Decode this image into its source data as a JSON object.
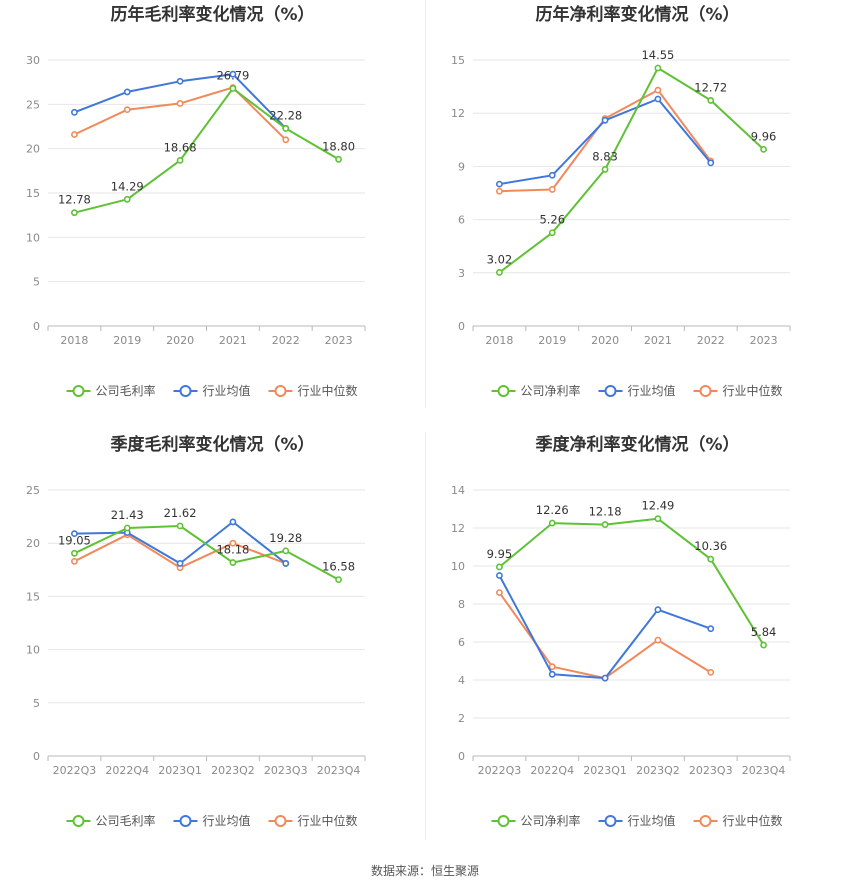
{
  "source": "数据来源：恒生聚源",
  "colors": {
    "company": "#5ec234",
    "industry_avg": "#3f77db",
    "industry_median": "#f08a5b"
  },
  "chart_data": [
    {
      "type": "line",
      "title": "历年毛利率变化情况（%）",
      "categories": [
        "2018",
        "2019",
        "2020",
        "2021",
        "2022",
        "2023"
      ],
      "ylim": [
        0,
        30
      ],
      "yticks": [
        0,
        5,
        10,
        15,
        20,
        25,
        30
      ],
      "grid": true,
      "legend": "bottom",
      "series": [
        {
          "name": "公司毛利率",
          "key": "company",
          "labels": true,
          "values": [
            12.78,
            14.29,
            18.68,
            26.79,
            22.28,
            18.8
          ],
          "display": [
            "12.78",
            "14.29",
            "18.68",
            "26.79",
            "22.28",
            "18.80"
          ]
        },
        {
          "name": "行业均值",
          "key": "industry_avg",
          "labels": false,
          "values": [
            24.1,
            26.4,
            27.6,
            28.4,
            22.3,
            null
          ]
        },
        {
          "name": "行业中位数",
          "key": "industry_median",
          "labels": false,
          "values": [
            21.6,
            24.4,
            25.1,
            26.9,
            21.0,
            null
          ]
        }
      ]
    },
    {
      "type": "line",
      "title": "历年净利率变化情况（%）",
      "categories": [
        "2018",
        "2019",
        "2020",
        "2021",
        "2022",
        "2023"
      ],
      "ylim": [
        0,
        15
      ],
      "yticks": [
        0,
        3,
        6,
        9,
        12,
        15
      ],
      "grid": true,
      "legend": "bottom",
      "series": [
        {
          "name": "公司净利率",
          "key": "company",
          "labels": true,
          "values": [
            3.02,
            5.26,
            8.83,
            14.55,
            12.72,
            9.96
          ],
          "display": [
            "3.02",
            "5.26",
            "8.83",
            "14.55",
            "12.72",
            "9.96"
          ]
        },
        {
          "name": "行业均值",
          "key": "industry_avg",
          "labels": false,
          "values": [
            8.0,
            8.5,
            11.6,
            12.8,
            9.2,
            null
          ]
        },
        {
          "name": "行业中位数",
          "key": "industry_median",
          "labels": false,
          "values": [
            7.6,
            7.7,
            11.7,
            13.3,
            9.3,
            null
          ]
        }
      ]
    },
    {
      "type": "line",
      "title": "季度毛利率变化情况（%）",
      "categories": [
        "2022Q3",
        "2022Q4",
        "2023Q1",
        "2023Q2",
        "2023Q3",
        "2023Q4"
      ],
      "ylim": [
        0,
        25
      ],
      "yticks": [
        0,
        5,
        10,
        15,
        20,
        25
      ],
      "grid": true,
      "legend": "bottom",
      "series": [
        {
          "name": "公司毛利率",
          "key": "company",
          "labels": true,
          "values": [
            19.05,
            21.43,
            21.62,
            18.18,
            19.28,
            16.58
          ],
          "display": [
            "19.05",
            "21.43",
            "21.62",
            "18.18",
            "19.28",
            "16.58"
          ]
        },
        {
          "name": "行业均值",
          "key": "industry_avg",
          "labels": false,
          "values": [
            20.9,
            21.0,
            18.1,
            22.0,
            18.1,
            null
          ]
        },
        {
          "name": "行业中位数",
          "key": "industry_median",
          "labels": false,
          "values": [
            18.3,
            20.8,
            17.7,
            20.0,
            18.1,
            null
          ]
        }
      ]
    },
    {
      "type": "line",
      "title": "季度净利率变化情况（%）",
      "categories": [
        "2022Q3",
        "2022Q4",
        "2023Q1",
        "2023Q2",
        "2023Q3",
        "2023Q4"
      ],
      "ylim": [
        0,
        14
      ],
      "yticks": [
        0,
        2,
        4,
        6,
        8,
        10,
        12,
        14
      ],
      "grid": true,
      "legend": "bottom",
      "series": [
        {
          "name": "公司净利率",
          "key": "company",
          "labels": true,
          "values": [
            9.95,
            12.26,
            12.18,
            12.49,
            10.36,
            5.84
          ],
          "display": [
            "9.95",
            "12.26",
            "12.18",
            "12.49",
            "10.36",
            "5.84"
          ]
        },
        {
          "name": "行业均值",
          "key": "industry_avg",
          "labels": false,
          "values": [
            9.5,
            4.3,
            4.1,
            7.7,
            6.7,
            null
          ]
        },
        {
          "name": "行业中位数",
          "key": "industry_median",
          "labels": false,
          "values": [
            8.6,
            4.7,
            4.1,
            6.1,
            4.4,
            null
          ]
        }
      ]
    }
  ]
}
